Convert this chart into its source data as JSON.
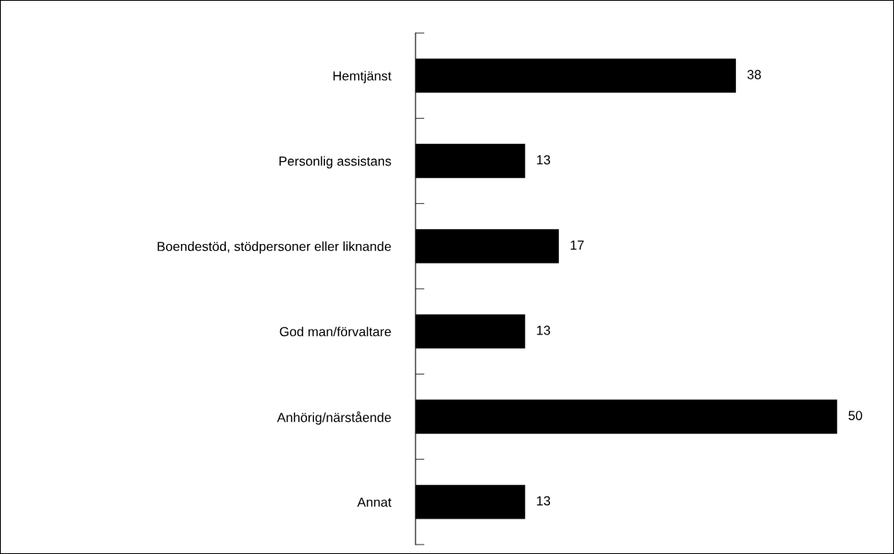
{
  "chart_data": {
    "type": "bar",
    "orientation": "horizontal",
    "categories": [
      "Hemtjänst",
      "Personlig assistans",
      "Boendestöd, stödpersoner eller liknande",
      "God man/förvaltare",
      "Anhörig/närstående",
      "Annat"
    ],
    "values": [
      38,
      13,
      17,
      13,
      50,
      13
    ],
    "color": "#000000",
    "data_labels": true,
    "grid": false,
    "legend": false
  }
}
